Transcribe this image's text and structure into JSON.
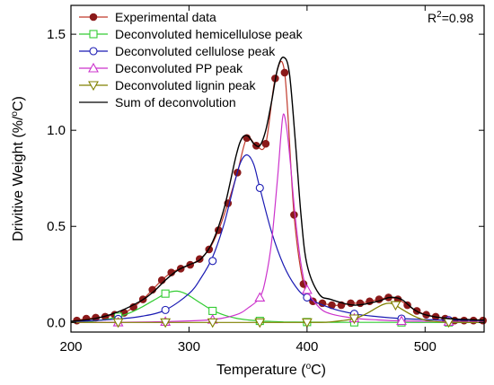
{
  "chart_data": {
    "type": "line",
    "xlabel": "Temperature (",
    "xlabel_sup": "o",
    "xlabel_end": "C)",
    "ylabel": "Drivitive Weight (%/",
    "ylabel_sup": "o",
    "ylabel_end": "C)",
    "xlim": [
      200,
      550
    ],
    "ylim": [
      -0.05,
      1.65
    ],
    "x_ticks": [
      200,
      300,
      400,
      500
    ],
    "x_tick_labels": [
      "200",
      "300",
      "400",
      "500"
    ],
    "y_ticks": [
      0.0,
      0.5,
      1.0,
      1.5
    ],
    "y_tick_labels": [
      "0.0",
      "0.5",
      "1.0",
      "1.5"
    ],
    "annotation": {
      "text": "R",
      "sup": "2",
      "tail": "=0.98"
    },
    "legend_position": "top-left",
    "colors": {
      "experimental_line": "#c0392b",
      "experimental_marker": "#8b1a1a",
      "hemicellulose": "#33cc33",
      "cellulose": "#1a1ab3",
      "pp": "#cc33cc",
      "lignin": "#808000",
      "sum": "#000000"
    },
    "series": [
      {
        "name": "Experimental data",
        "key": "experimental",
        "marker": "filled-circle",
        "x": [
          205,
          213,
          221,
          229,
          237,
          245,
          253,
          261,
          269,
          277,
          285,
          293,
          301,
          309,
          317,
          325,
          333,
          341,
          349,
          357,
          365,
          373,
          381,
          389,
          397,
          405,
          413,
          421,
          429,
          437,
          445,
          453,
          461,
          469,
          477,
          485,
          493,
          501,
          509,
          517,
          525,
          533,
          541,
          549
        ],
        "y": [
          0.01,
          0.02,
          0.025,
          0.03,
          0.04,
          0.05,
          0.08,
          0.12,
          0.17,
          0.22,
          0.26,
          0.28,
          0.3,
          0.33,
          0.38,
          0.48,
          0.62,
          0.78,
          0.96,
          0.92,
          0.93,
          1.27,
          1.3,
          0.56,
          0.2,
          0.11,
          0.1,
          0.09,
          0.09,
          0.1,
          0.1,
          0.11,
          0.12,
          0.13,
          0.12,
          0.09,
          0.06,
          0.04,
          0.03,
          0.02,
          0.01,
          0.01,
          0.01,
          0.01
        ]
      },
      {
        "name": "Deconvoluted hemicellulose peak",
        "key": "hemicellulose",
        "marker": "open-square",
        "x": [
          200,
          210,
          220,
          230,
          240,
          250,
          260,
          270,
          280,
          285,
          290,
          295,
          300,
          310,
          320,
          330,
          340,
          350,
          360,
          370,
          380,
          390,
          400,
          420,
          440,
          460,
          480,
          500,
          520,
          550
        ],
        "y": [
          0.001,
          0.003,
          0.008,
          0.016,
          0.03,
          0.05,
          0.08,
          0.115,
          0.15,
          0.16,
          0.163,
          0.155,
          0.14,
          0.1,
          0.063,
          0.038,
          0.022,
          0.013,
          0.008,
          0.005,
          0.003,
          0.002,
          0.0015,
          0.001,
          0.0005,
          0.0003,
          0.0002,
          0.0001,
          0.0001,
          0.0
        ],
        "marker_x": [
          240,
          280,
          320,
          360,
          400,
          440,
          480,
          520
        ],
        "marker_y": [
          0.03,
          0.15,
          0.06,
          0.008,
          0.002,
          0.0005,
          0.0002,
          0.0001
        ]
      },
      {
        "name": "Deconvoluted cellulose peak",
        "key": "cellulose",
        "marker": "open-circle",
        "x": [
          200,
          220,
          240,
          260,
          280,
          300,
          310,
          320,
          330,
          340,
          345,
          350,
          355,
          360,
          370,
          380,
          390,
          400,
          420,
          440,
          460,
          480,
          500,
          520,
          550
        ],
        "y": [
          0.005,
          0.01,
          0.018,
          0.032,
          0.065,
          0.15,
          0.23,
          0.34,
          0.52,
          0.76,
          0.85,
          0.87,
          0.82,
          0.7,
          0.47,
          0.3,
          0.19,
          0.13,
          0.075,
          0.045,
          0.03,
          0.02,
          0.015,
          0.012,
          0.01
        ],
        "marker_x": [
          240,
          280,
          320,
          360,
          400,
          440,
          480,
          520
        ],
        "marker_y": [
          0.018,
          0.065,
          0.32,
          0.7,
          0.13,
          0.045,
          0.02,
          0.012
        ]
      },
      {
        "name": "Deconvoluted PP peak",
        "key": "pp",
        "marker": "open-triangle",
        "x": [
          200,
          240,
          280,
          320,
          340,
          350,
          360,
          365,
          370,
          375,
          378,
          380,
          383,
          386,
          390,
          395,
          400,
          410,
          420,
          440,
          460,
          480,
          520,
          550
        ],
        "y": [
          0.0,
          0.001,
          0.004,
          0.015,
          0.04,
          0.075,
          0.13,
          0.23,
          0.42,
          0.75,
          0.98,
          1.085,
          1.0,
          0.82,
          0.55,
          0.3,
          0.17,
          0.08,
          0.045,
          0.022,
          0.013,
          0.008,
          0.004,
          0.002
        ],
        "marker_x": [
          240,
          280,
          320,
          360,
          400,
          440,
          480,
          520
        ],
        "marker_y": [
          0.001,
          0.004,
          0.015,
          0.13,
          0.17,
          0.022,
          0.008,
          0.004
        ]
      },
      {
        "name": "Deconvoluted lignin peak",
        "key": "lignin",
        "marker": "open-inverted-triangle",
        "x": [
          200,
          300,
          400,
          420,
          440,
          450,
          460,
          465,
          470,
          475,
          480,
          490,
          500,
          510,
          520,
          550
        ],
        "y": [
          0.0,
          0.0,
          0.0,
          0.003,
          0.02,
          0.045,
          0.08,
          0.095,
          0.1,
          0.09,
          0.07,
          0.035,
          0.012,
          0.004,
          0.001,
          0.0
        ],
        "marker_x": [
          240,
          280,
          320,
          360,
          400,
          440,
          475,
          520
        ],
        "marker_y": [
          0.0,
          0.0,
          0.0,
          0.0,
          0.0,
          0.02,
          0.09,
          0.001
        ]
      },
      {
        "name": "Sum of deconvolution",
        "key": "sum",
        "marker": "none",
        "x": [
          200,
          220,
          240,
          260,
          270,
          280,
          290,
          300,
          310,
          320,
          330,
          340,
          345,
          350,
          355,
          360,
          365,
          370,
          375,
          380,
          385,
          390,
          395,
          400,
          410,
          420,
          440,
          460,
          470,
          480,
          490,
          500,
          520,
          550
        ],
        "y": [
          0.006,
          0.02,
          0.055,
          0.115,
          0.16,
          0.22,
          0.27,
          0.3,
          0.33,
          0.42,
          0.6,
          0.87,
          0.96,
          0.97,
          0.93,
          0.92,
          1.0,
          1.15,
          1.32,
          1.38,
          1.3,
          0.95,
          0.55,
          0.3,
          0.15,
          0.12,
          0.09,
          0.11,
          0.13,
          0.12,
          0.07,
          0.04,
          0.02,
          0.012
        ]
      }
    ]
  }
}
